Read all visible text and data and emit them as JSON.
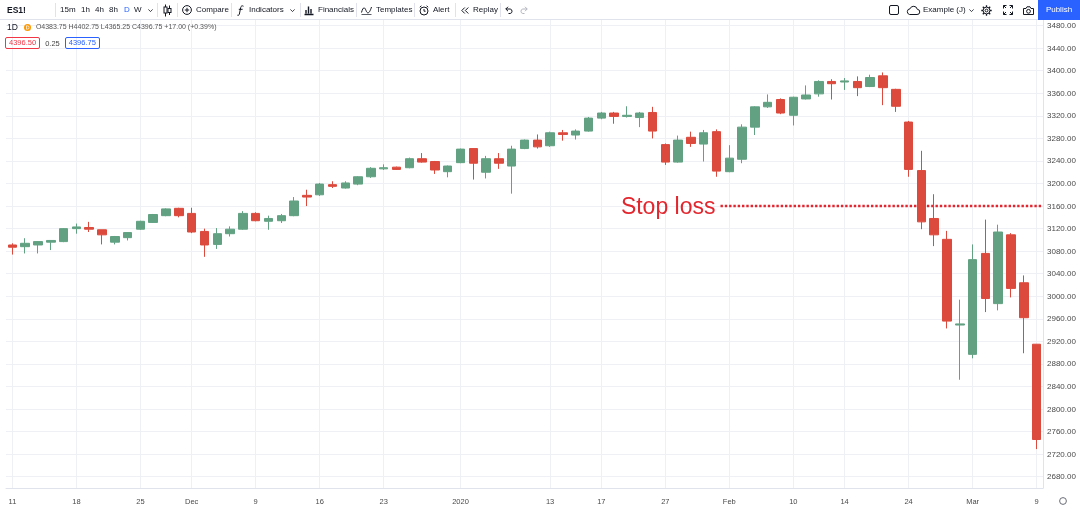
{
  "chart_data": {
    "type": "candlestick",
    "title": "1D",
    "subtitle": "O4383.75 H4402.75 L4365.25 C4396.75 +17.00 (+0.39%)",
    "annotations": [
      "ES1!",
      "15m",
      "1h",
      "4h",
      "8h",
      "D",
      "W",
      "Compare",
      "Indicators",
      "Financials",
      "Templates",
      "Alert",
      "Replay",
      "Example (J)",
      "Publish",
      "4396.50",
      "0.25",
      "4396.75"
    ],
    "categories": [
      "11",
      null,
      null,
      null,
      null,
      "18",
      null,
      null,
      null,
      null,
      "25",
      null,
      null,
      null,
      "Dec",
      null,
      null,
      null,
      null,
      "9",
      null,
      null,
      null,
      null,
      "16",
      null,
      null,
      null,
      null,
      "23",
      null,
      null,
      null,
      null,
      null,
      "2020",
      null,
      null,
      null,
      null,
      null,
      null,
      "13",
      null,
      null,
      null,
      "17",
      null,
      null,
      null,
      null,
      "27",
      null,
      null,
      null,
      null,
      "Feb",
      null,
      null,
      null,
      null,
      "10",
      null,
      null,
      null,
      "14",
      null,
      null,
      null,
      null,
      "24",
      null,
      null,
      null,
      null,
      "Mar",
      null,
      null,
      null,
      null,
      "9"
    ],
    "ohlc": [
      [
        3091,
        3094,
        3074,
        3087
      ],
      [
        3088,
        3103,
        3076,
        3094
      ],
      [
        3091,
        3098,
        3076,
        3097
      ],
      [
        3096,
        3099,
        3082,
        3099
      ],
      [
        3097,
        3121,
        3096,
        3120
      ],
      [
        3120,
        3129,
        3111,
        3123
      ],
      [
        3122,
        3132,
        3114,
        3119
      ],
      [
        3118,
        3118,
        3092,
        3109
      ],
      [
        3096,
        3107,
        3092,
        3106
      ],
      [
        3104,
        3114,
        3099,
        3113
      ],
      [
        3119,
        3134,
        3118,
        3133
      ],
      [
        3131,
        3146,
        3130,
        3145
      ],
      [
        3143,
        3156,
        3142,
        3155
      ],
      [
        3156,
        3157,
        3140,
        3143
      ],
      [
        3147,
        3157,
        3112,
        3114
      ],
      [
        3115,
        3120,
        3070,
        3091
      ],
      [
        3092,
        3121,
        3084,
        3111
      ],
      [
        3111,
        3124,
        3106,
        3119
      ],
      [
        3119,
        3151,
        3118,
        3147
      ],
      [
        3147,
        3149,
        3133,
        3134
      ],
      [
        3133,
        3143,
        3118,
        3138
      ],
      [
        3134,
        3146,
        3130,
        3143
      ],
      [
        3143,
        3176,
        3142,
        3169
      ],
      [
        3179,
        3189,
        3160,
        3176
      ],
      [
        3180,
        3201,
        3178,
        3199
      ],
      [
        3198,
        3204,
        3192,
        3195
      ],
      [
        3192,
        3204,
        3191,
        3201
      ],
      [
        3199,
        3213,
        3197,
        3212
      ],
      [
        3212,
        3229,
        3210,
        3227
      ],
      [
        3226,
        3234,
        3224,
        3228
      ],
      [
        3229,
        3230,
        3224,
        3225
      ],
      [
        3228,
        3246,
        3227,
        3244
      ],
      [
        3244,
        3254,
        3237,
        3238
      ],
      [
        3239,
        3240,
        3217,
        3224
      ],
      [
        3221,
        3232,
        3211,
        3231
      ],
      [
        3237,
        3262,
        3236,
        3261
      ],
      [
        3262,
        3262,
        3207,
        3236
      ],
      [
        3220,
        3249,
        3209,
        3244
      ],
      [
        3244,
        3254,
        3226,
        3236
      ],
      [
        3231,
        3267,
        3182,
        3261
      ],
      [
        3262,
        3278,
        3261,
        3277
      ],
      [
        3277,
        3287,
        3262,
        3265
      ],
      [
        3267,
        3292,
        3265,
        3290
      ],
      [
        3290,
        3295,
        3276,
        3287
      ],
      [
        3286,
        3296,
        3278,
        3293
      ],
      [
        3293,
        3318,
        3292,
        3316
      ],
      [
        3316,
        3327,
        3314,
        3325
      ],
      [
        3325,
        3327,
        3306,
        3319
      ],
      [
        3319,
        3337,
        3317,
        3321
      ],
      [
        3317,
        3327,
        3300,
        3325
      ],
      [
        3326,
        3336,
        3280,
        3293
      ],
      [
        3269,
        3271,
        3233,
        3238
      ],
      [
        3238,
        3285,
        3237,
        3277
      ],
      [
        3282,
        3292,
        3265,
        3271
      ],
      [
        3270,
        3295,
        3239,
        3290
      ],
      [
        3292,
        3296,
        3212,
        3222
      ],
      [
        3221,
        3268,
        3220,
        3245
      ],
      [
        3243,
        3305,
        3236,
        3300
      ],
      [
        3300,
        3337,
        3286,
        3336
      ],
      [
        3336,
        3358,
        3334,
        3344
      ],
      [
        3349,
        3351,
        3323,
        3325
      ],
      [
        3321,
        3354,
        3303,
        3353
      ],
      [
        3350,
        3374,
        3349,
        3357
      ],
      [
        3359,
        3383,
        3354,
        3381
      ],
      [
        3381,
        3385,
        3349,
        3377
      ],
      [
        3380,
        3387,
        3366,
        3382
      ],
      [
        3381,
        3390,
        3355,
        3370
      ],
      [
        3372,
        3393,
        3371,
        3388
      ],
      [
        3391,
        3397,
        3339,
        3370
      ],
      [
        3367,
        3368,
        3327,
        3337
      ],
      [
        3309,
        3311,
        3212,
        3225
      ],
      [
        3223,
        3258,
        3119,
        3132
      ],
      [
        3138,
        3181,
        3089,
        3109
      ],
      [
        3101,
        3116,
        2943,
        2956
      ],
      [
        2949,
        2994,
        2852,
        2951
      ],
      [
        2897,
        3092,
        2890,
        3065
      ],
      [
        3076,
        3136,
        2972,
        2996
      ],
      [
        2987,
        3127,
        2975,
        3114
      ],
      [
        3109,
        3112,
        2998,
        3014
      ],
      [
        3024,
        3037,
        2899,
        2962
      ],
      [
        2915,
        2915,
        2729,
        2746
      ]
    ],
    "colors": [
      "#dc4a3d",
      "#62a283",
      "#62a283",
      "#62a283",
      "#62a283",
      "#62a283",
      "#dc4a3d",
      "#dc4a3d",
      "#62a283",
      "#62a283",
      "#62a283",
      "#62a283",
      "#62a283",
      "#dc4a3d",
      "#dc4a3d",
      "#dc4a3d",
      "#62a283",
      "#62a283",
      "#62a283",
      "#dc4a3d",
      "#62a283",
      "#62a283",
      "#62a283",
      "#dc4a3d",
      "#62a283",
      "#dc4a3d",
      "#62a283",
      "#62a283",
      "#62a283",
      "#62a283",
      "#dc4a3d",
      "#62a283",
      "#dc4a3d",
      "#dc4a3d",
      "#62a283",
      "#62a283",
      "#dc4a3d",
      "#62a283",
      "#dc4a3d",
      "#62a283",
      "#62a283",
      "#dc4a3d",
      "#62a283",
      "#dc4a3d",
      "#62a283",
      "#62a283",
      "#62a283",
      "#dc4a3d",
      "#62a283",
      "#62a283",
      "#dc4a3d",
      "#dc4a3d",
      "#62a283",
      "#dc4a3d",
      "#62a283",
      "#dc4a3d",
      "#62a283",
      "#62a283",
      "#62a283",
      "#62a283",
      "#dc4a3d",
      "#62a283",
      "#62a283",
      "#62a283",
      "#dc4a3d",
      "#62a283",
      "#dc4a3d",
      "#62a283",
      "#dc4a3d",
      "#dc4a3d",
      "#dc4a3d",
      "#dc4a3d",
      "#dc4a3d",
      "#dc4a3d",
      "#62a283",
      "#62a283",
      "#dc4a3d",
      "#62a283",
      "#dc4a3d",
      "#dc4a3d",
      "#dc4a3d"
    ],
    "ylim": [
      2660,
      3490
    ],
    "yticks": [
      {
        "value": 2680,
        "label": "2680.00"
      },
      {
        "value": 2720,
        "label": "2720.00"
      },
      {
        "value": 2760,
        "label": "2760.00"
      },
      {
        "value": 2800,
        "label": "2800.00"
      },
      {
        "value": 2840,
        "label": "2840.00"
      },
      {
        "value": 2880,
        "label": "2880.00"
      },
      {
        "value": 2920,
        "label": "2920.00"
      },
      {
        "value": 2960,
        "label": "2960.00"
      },
      {
        "value": 3000,
        "label": "3000.00"
      },
      {
        "value": 3040,
        "label": "3040.00"
      },
      {
        "value": 3080,
        "label": "3080.00"
      },
      {
        "value": 3120,
        "label": "3120.00"
      },
      {
        "value": 3160,
        "label": "3160.00"
      },
      {
        "value": 3200,
        "label": "3200.00"
      },
      {
        "value": 3240,
        "label": "3240.00"
      },
      {
        "value": 3280,
        "label": "3280.00"
      },
      {
        "value": 3320,
        "label": "3320.00"
      },
      {
        "value": 3360,
        "label": "3360.00"
      },
      {
        "value": 3400,
        "label": "3400.00"
      },
      {
        "value": 3440,
        "label": "3440.00"
      },
      {
        "value": 3480,
        "label": "3480.00"
      }
    ],
    "grid": true,
    "ref_lines": [
      {
        "axis": "y",
        "value": 3160,
        "label": "Stop loss",
        "color": "#e3262e",
        "line_style": "dotted"
      }
    ]
  }
}
